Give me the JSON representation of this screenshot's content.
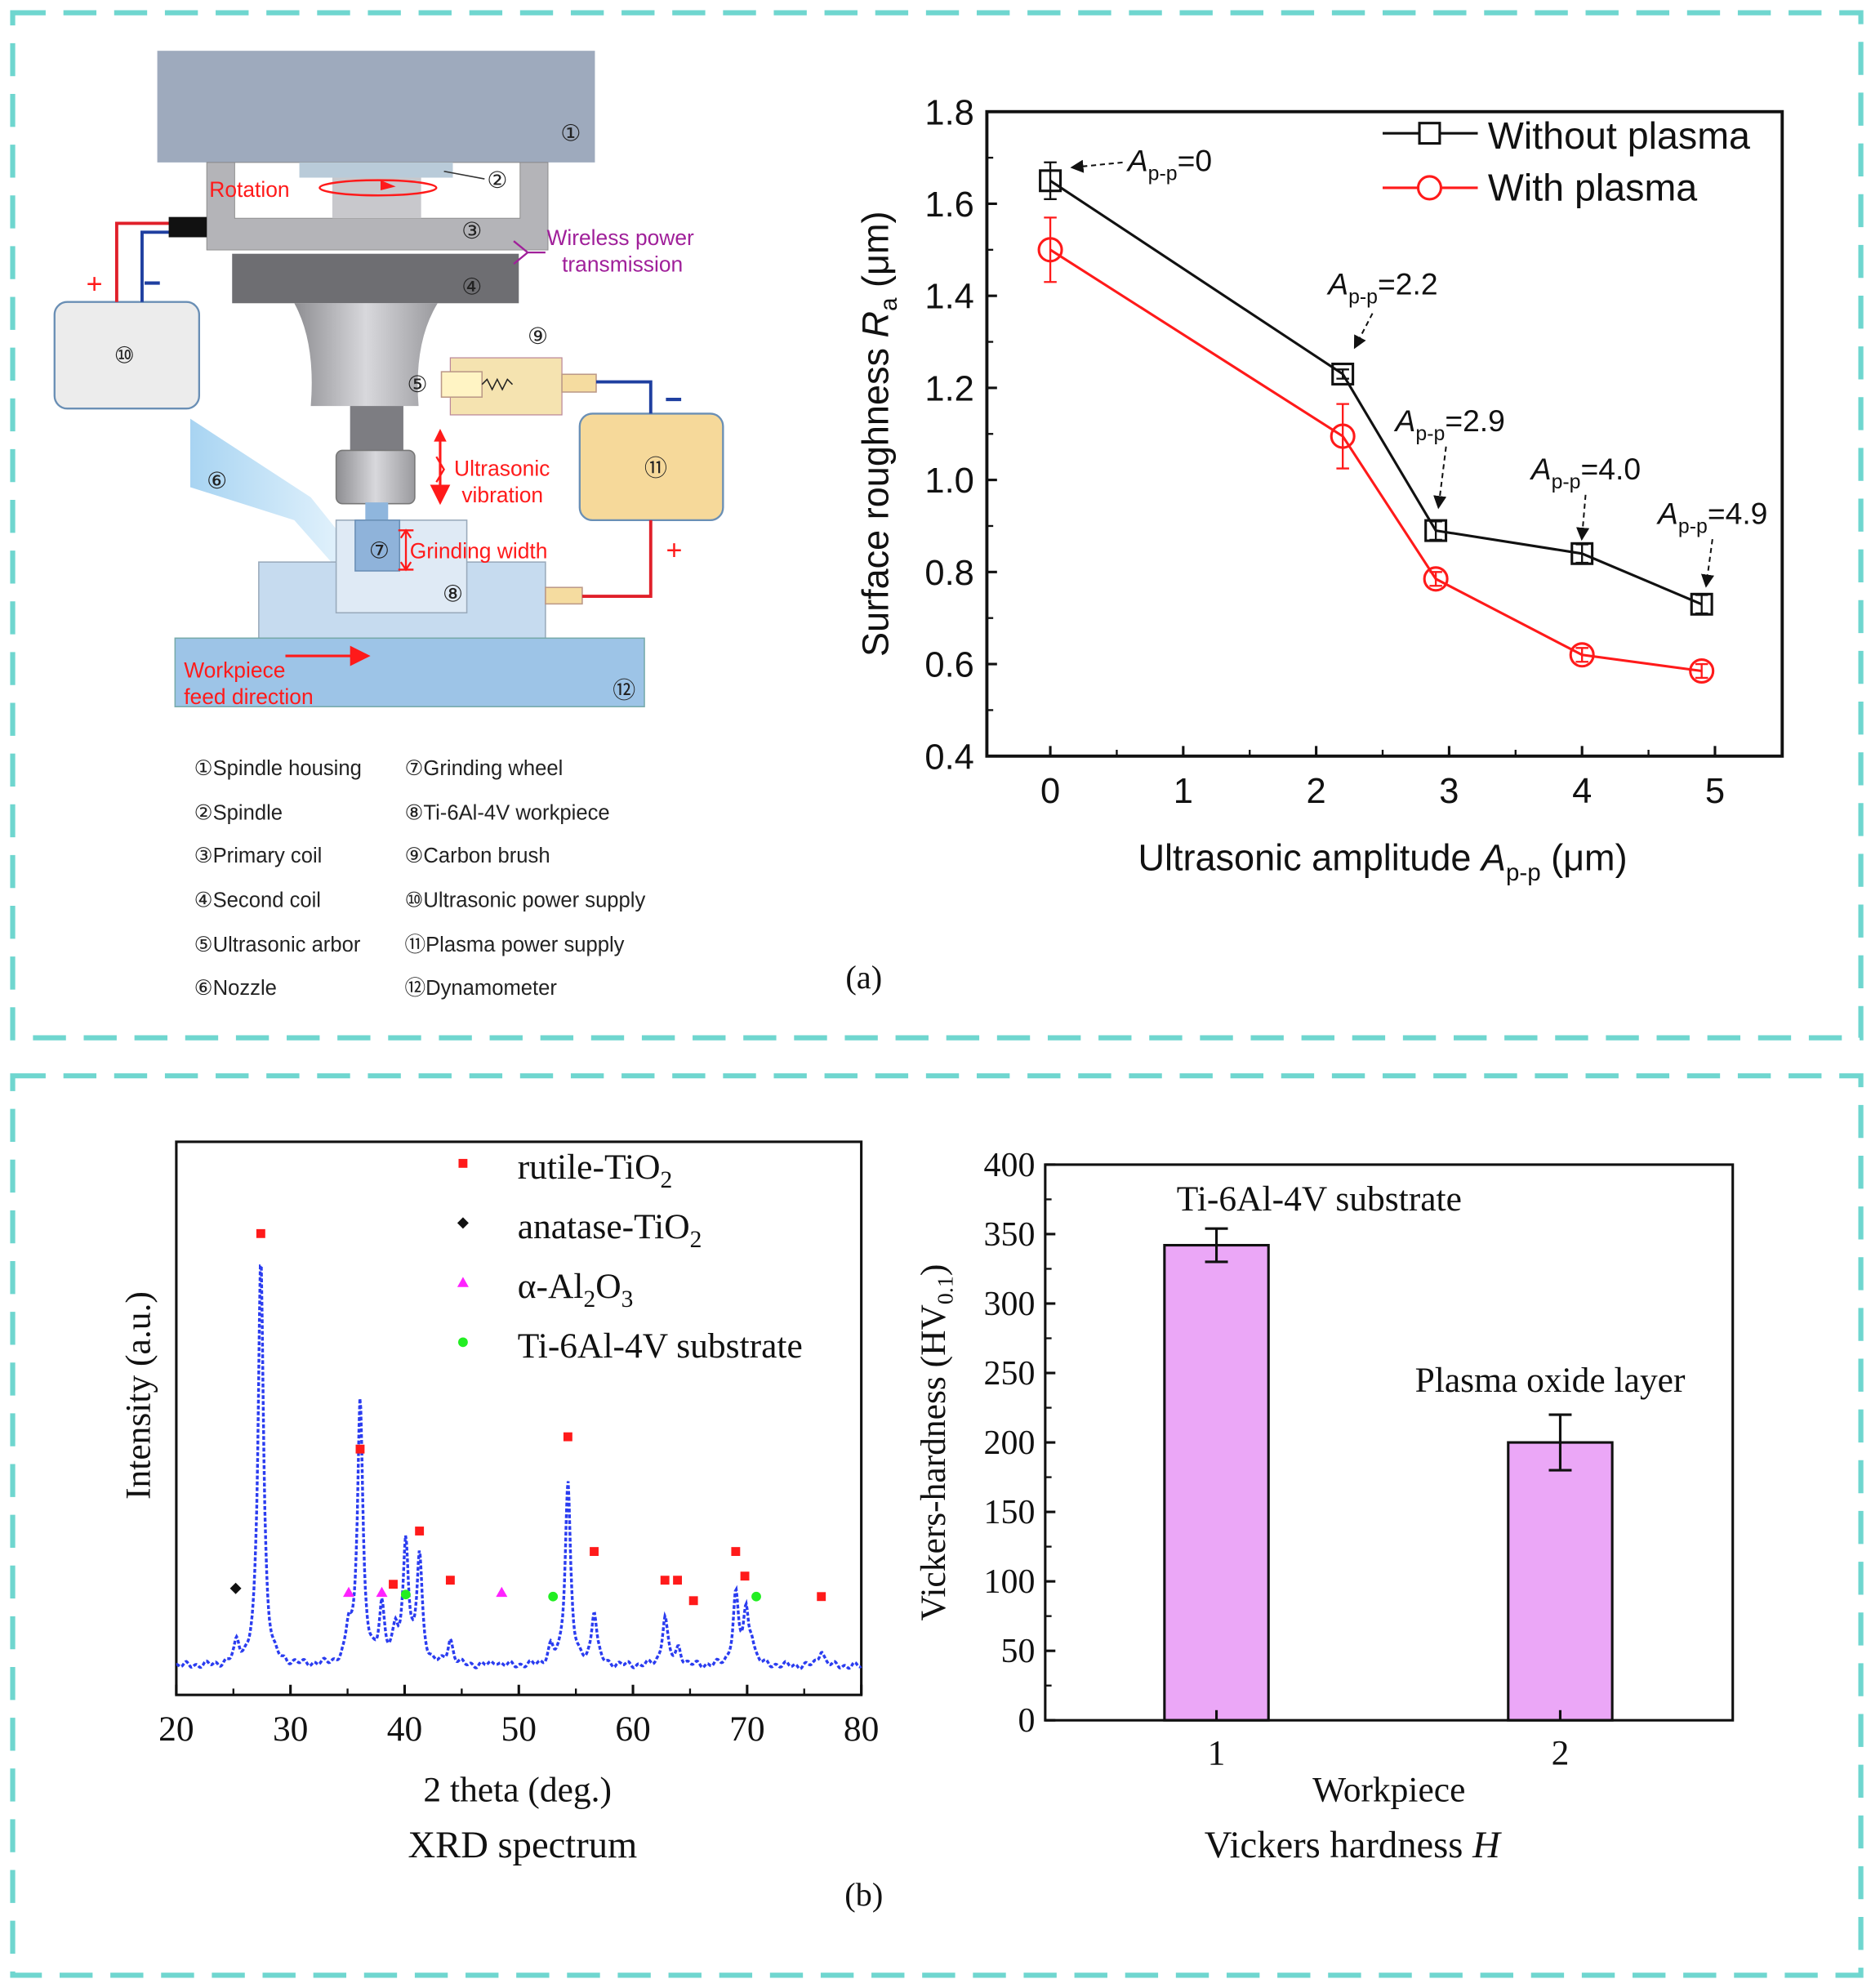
{
  "colors": {
    "panel_border": "#6fd6cf",
    "black": "#111111",
    "red": "#ff1a1a",
    "xrd_line": "#2a3cf0",
    "bar_fill": "#eba7f7",
    "purple": "#a0209a"
  },
  "panel_a": {
    "label": "(a)",
    "diagram": {
      "numbers": [
        "①",
        "②",
        "③",
        "④",
        "⑤",
        "⑥",
        "⑦",
        "⑧",
        "⑨",
        "⑩",
        "⑪",
        "⑫"
      ],
      "rotation": "Rotation",
      "wireless_1": "Wireless power",
      "wireless_2": "transmission",
      "ultrasonic_1": "Ultrasonic",
      "ultrasonic_2": "vibration",
      "grinding_width": "Grinding width",
      "feed_1": "Workpiece",
      "feed_2": "feed direction",
      "plus": "+",
      "minus": "−"
    },
    "legend": [
      "①Spindle housing",
      "②Spindle",
      "③Primary coil",
      "④Second coil",
      "⑤Ultrasonic arbor",
      "⑥Nozzle",
      "⑦Grinding wheel",
      "⑧Ti-6Al-4V workpiece",
      "⑨Carbon brush",
      "⑩Ultrasonic power supply",
      "⑪Plasma power supply",
      "⑫Dynamometer"
    ]
  },
  "panel_b": {
    "label": "(b)"
  },
  "chart_data": [
    {
      "type": "line",
      "title": "",
      "xlabel": {
        "pre": "Ultrasonic amplitude ",
        "var": "A",
        "sub": "p-p",
        "post": " (μm)"
      },
      "ylabel": {
        "pre": "Surface roughness ",
        "var": "R",
        "sub": "a",
        "post": " (μm)"
      },
      "xlim": [
        -0.5,
        5.5
      ],
      "ylim": [
        0.4,
        1.8
      ],
      "xticks": [
        "0",
        "1",
        "2",
        "3",
        "4",
        "5"
      ],
      "yticks": [
        "0.4",
        "0.6",
        "0.8",
        "1.0",
        "1.2",
        "1.4",
        "1.6",
        "1.8"
      ],
      "x": [
        0,
        2.2,
        2.9,
        4.0,
        4.9
      ],
      "series": [
        {
          "name": "Without plasma",
          "marker": "square",
          "color": "#111111",
          "values": [
            1.65,
            1.23,
            0.89,
            0.84,
            0.73
          ],
          "errors": [
            0.04,
            0.01,
            0.02,
            0.02,
            0.02
          ]
        },
        {
          "name": "With plasma",
          "marker": "circle",
          "color": "#ff1a1a",
          "values": [
            1.5,
            1.095,
            0.785,
            0.62,
            0.585
          ],
          "errors": [
            0.07,
            0.07,
            0.015,
            0.015,
            0.015
          ]
        }
      ],
      "annotations": [
        {
          "var": "A",
          "sub": "p-p",
          "text": "=0"
        },
        {
          "var": "A",
          "sub": "p-p",
          "text": "=2.2"
        },
        {
          "var": "A",
          "sub": "p-p",
          "text": "=2.9"
        },
        {
          "var": "A",
          "sub": "p-p",
          "text": "=4.0"
        },
        {
          "var": "A",
          "sub": "p-p",
          "text": "=4.9"
        }
      ],
      "legend_position": "top-right"
    },
    {
      "type": "line",
      "title": "XRD spectrum",
      "xlabel": "2 theta (deg.)",
      "ylabel": "Intensity (a.u.)",
      "xlim": [
        20,
        80
      ],
      "ylim": [
        -7,
        128
      ],
      "xticks": [
        "20",
        "30",
        "40",
        "50",
        "60",
        "70",
        "80"
      ],
      "peaks": [
        [
          25.3,
          5
        ],
        [
          27.4,
          100
        ],
        [
          35.1,
          8
        ],
        [
          36.1,
          65
        ],
        [
          38.0,
          14
        ],
        [
          39.2,
          7
        ],
        [
          40.1,
          30
        ],
        [
          41.3,
          26
        ],
        [
          44.0,
          6
        ],
        [
          48.0,
          1
        ],
        [
          52.8,
          4
        ],
        [
          54.3,
          45
        ],
        [
          56.6,
          13
        ],
        [
          62.8,
          12
        ],
        [
          64.0,
          4
        ],
        [
          69.0,
          17
        ],
        [
          69.9,
          12
        ],
        [
          70.4,
          5
        ],
        [
          76.5,
          4
        ]
      ],
      "legend": [
        {
          "pre": "rutile-TiO",
          "sub": "2",
          "mid": "",
          "sub2": "",
          "marker": "square",
          "color": "#ff1a1a"
        },
        {
          "pre": "anatase-TiO",
          "sub": "2",
          "mid": "",
          "sub2": "",
          "marker": "diamond",
          "color": "#111111"
        },
        {
          "pre": "α-Al",
          "sub": "2",
          "mid": "O",
          "sub2": "3",
          "marker": "triangle",
          "color": "#ff22ff"
        },
        {
          "pre": "Ti-6Al-4V substrate",
          "sub": "",
          "mid": "",
          "sub2": "",
          "marker": "circle",
          "color": "#22ee22"
        }
      ],
      "markers": [
        {
          "phase": 0,
          "points": [
            [
              27.4,
              105.6
            ],
            [
              36.1,
              53
            ],
            [
              39.0,
              20
            ],
            [
              41.3,
              33
            ],
            [
              44.0,
              21
            ],
            [
              54.3,
              56
            ],
            [
              56.6,
              28
            ],
            [
              62.8,
              21
            ],
            [
              63.9,
              21
            ],
            [
              65.3,
              16
            ],
            [
              69.0,
              28
            ],
            [
              69.8,
              22
            ],
            [
              76.5,
              17
            ]
          ]
        },
        {
          "phase": 1,
          "points": [
            [
              25.2,
              19
            ]
          ]
        },
        {
          "phase": 2,
          "points": [
            [
              35.1,
              18
            ],
            [
              38.0,
              18
            ],
            [
              48.5,
              18
            ]
          ]
        },
        {
          "phase": 3,
          "points": [
            [
              40.1,
              17.5
            ],
            [
              53.0,
              17
            ],
            [
              70.8,
              17
            ]
          ]
        }
      ]
    },
    {
      "type": "bar",
      "title": "Vickers hardness H",
      "title_pre": "Vickers hardness ",
      "title_var": "H",
      "xlabel": "Workpiece",
      "ylabel": {
        "pre": "Vickers-hardness (HV",
        "sub": "0.1",
        "post": ")"
      },
      "categories": [
        "1",
        "2"
      ],
      "values": [
        342,
        200
      ],
      "errors": [
        12,
        20
      ],
      "bar_labels": [
        "Ti-6Al-4V substrate",
        "Plasma oxide layer"
      ],
      "ylim": [
        0,
        400
      ],
      "yticks": [
        "0",
        "50",
        "100",
        "150",
        "200",
        "250",
        "300",
        "350",
        "400"
      ]
    }
  ]
}
